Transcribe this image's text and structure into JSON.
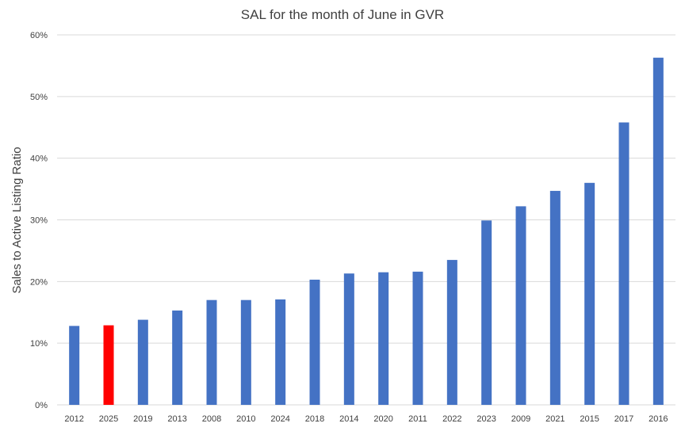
{
  "chart_data": {
    "type": "bar",
    "title": "SAL for the month of June in GVR",
    "xlabel": "",
    "ylabel": "Sales to Active Listing Ratio",
    "ylim": [
      0,
      60
    ],
    "y_ticks": [
      "0%",
      "10%",
      "20%",
      "30%",
      "40%",
      "50%",
      "60%"
    ],
    "grid": true,
    "legend": "none",
    "categories": [
      "2012",
      "2025",
      "2019",
      "2013",
      "2008",
      "2010",
      "2024",
      "2018",
      "2014",
      "2020",
      "2011",
      "2022",
      "2023",
      "2009",
      "2021",
      "2015",
      "2017",
      "2016"
    ],
    "values": [
      12.8,
      12.9,
      13.8,
      15.3,
      17.0,
      17.0,
      17.1,
      20.3,
      21.3,
      21.5,
      21.6,
      23.5,
      29.9,
      32.2,
      34.7,
      36.0,
      45.8,
      56.3
    ],
    "colors": {
      "default": "#4472c4",
      "highlight": "#ff0000",
      "highlight_category": "2025"
    }
  }
}
